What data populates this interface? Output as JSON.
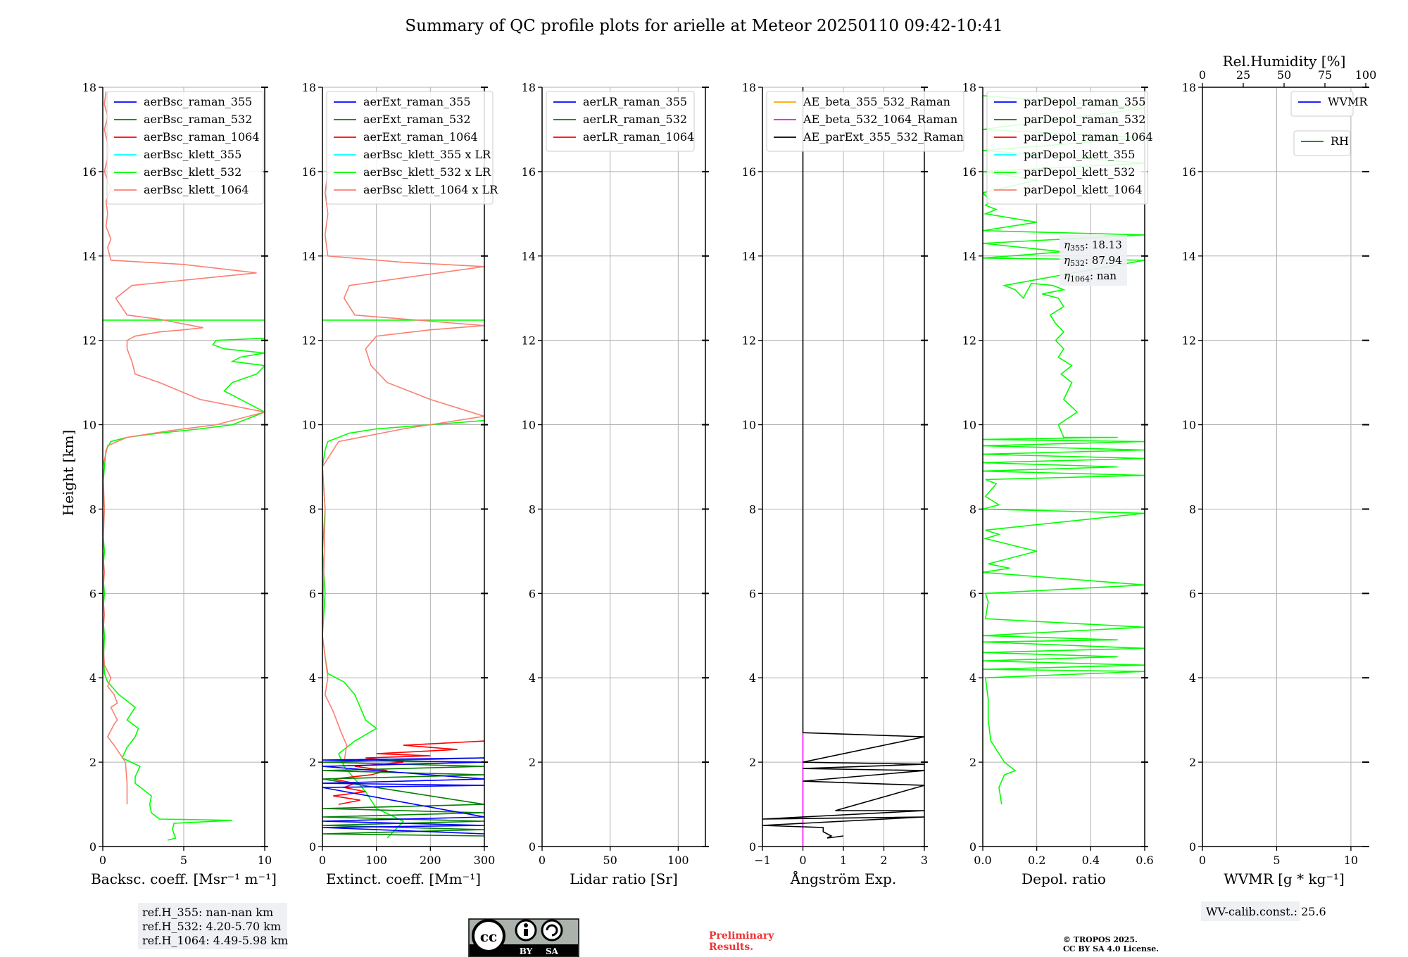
{
  "title": "Summary of QC profile plots for arielle at Meteor 20250110 09:42-10:41",
  "y_axis_label": "Height [km]",
  "colors": {
    "raman_355": "#0000ff",
    "raman_532": "#008000",
    "raman_1064": "#ff0000",
    "klett_355": "#00ffff",
    "klett_532": "#00ff00",
    "klett_1064": "#fa8072",
    "ae_355_532": "#ffa500",
    "ae_532_1064": "#ff00ff",
    "ae_ext": "#000000",
    "wvmr": "#0000ff",
    "rh": "#008000"
  },
  "chart_data": [
    {
      "type": "line",
      "panel": "backscatter",
      "xlabel": "Backsc. coeff. [Msr⁻¹ m⁻¹]",
      "ylabel": "Height [km]",
      "xlim": [
        0,
        10
      ],
      "ylim": [
        0,
        18
      ],
      "xticks": [
        0,
        5,
        10
      ],
      "yticks": [
        0,
        2,
        4,
        6,
        8,
        10,
        12,
        14,
        16,
        18
      ],
      "grid": true,
      "legend_position": "top-left",
      "legend": [
        "aerBsc_raman_355",
        "aerBsc_raman_532",
        "aerBsc_raman_1064",
        "aerBsc_klett_355",
        "aerBsc_klett_532",
        "aerBsc_klett_1064"
      ],
      "series": [
        {
          "name": "aerBsc_klett_532",
          "color_key": "klett_532",
          "x": [
            4.0,
            4.5,
            4.3,
            4.4,
            8.0,
            3.5,
            3.0,
            2.9,
            3.0,
            2.0,
            2.0,
            2.3,
            1.2,
            1.5,
            2.0,
            2.2,
            1.5,
            2.0,
            1.0,
            0.3,
            0.1,
            0.05,
            0.1,
            0.0,
            0.1,
            0.0,
            0.1,
            0.0,
            0.1,
            0.0,
            0.1,
            0.2,
            0.5,
            1.5,
            3.5,
            6.0,
            8.0,
            10.0,
            8.5,
            7.5,
            8.0,
            9.5,
            10.0,
            8.0,
            8.5,
            10.0,
            7.5,
            6.8,
            7.0,
            10.0
          ],
          "y": [
            0.15,
            0.2,
            0.4,
            0.55,
            0.62,
            0.65,
            0.8,
            1.0,
            1.2,
            1.5,
            1.65,
            1.9,
            2.1,
            2.35,
            2.6,
            2.8,
            3.0,
            3.3,
            3.6,
            3.9,
            4.1,
            4.5,
            5.0,
            5.5,
            6.0,
            6.5,
            7.0,
            7.5,
            8.0,
            8.5,
            9.0,
            9.4,
            9.6,
            9.7,
            9.8,
            9.9,
            10.0,
            10.3,
            10.6,
            10.8,
            11.0,
            11.2,
            11.4,
            11.5,
            11.6,
            11.7,
            11.8,
            11.9,
            12.0,
            12.05
          ]
        },
        {
          "name": "aerBsc_klett_532",
          "color_key": "klett_532",
          "x": [
            0.0,
            10.0
          ],
          "y": [
            12.48,
            12.48
          ]
        },
        {
          "name": "aerBsc_klett_1064",
          "color_key": "klett_1064",
          "x": [
            1.5,
            1.5,
            1.4,
            0.7,
            0.3,
            0.7,
            0.9,
            0.5,
            0.9,
            0.7,
            0.3,
            0.5,
            0.1,
            0.0,
            0.1,
            0.0,
            0.1,
            0.0,
            0.1,
            0.0,
            0.3,
            1.5,
            4.0,
            7.0,
            10.0,
            6.0,
            3.5,
            2.0,
            1.8,
            1.5,
            1.5,
            2.0,
            3.5,
            5.0,
            6.2,
            3.5,
            1.5,
            0.8,
            1.8,
            9.5,
            5.0,
            0.5,
            0.3,
            0.5,
            0.2,
            0.3,
            0.2,
            0.5,
            0.1,
            0.4,
            0.1,
            0.3,
            0.1,
            0.2
          ],
          "y": [
            1.0,
            1.5,
            2.0,
            2.4,
            2.6,
            2.9,
            3.0,
            3.3,
            3.4,
            3.6,
            3.8,
            4.0,
            4.3,
            5.0,
            5.5,
            6.0,
            6.5,
            7.0,
            8.0,
            9.0,
            9.5,
            9.7,
            9.85,
            10.0,
            10.3,
            10.6,
            11.0,
            11.2,
            11.5,
            11.8,
            12.0,
            12.1,
            12.2,
            12.25,
            12.3,
            12.5,
            12.6,
            13.0,
            13.3,
            13.6,
            13.8,
            13.9,
            14.2,
            14.4,
            14.7,
            15.0,
            15.3,
            15.6,
            16.0,
            16.5,
            17.0,
            17.3,
            17.6,
            17.9
          ]
        }
      ],
      "footnote_lines": [
        "ref.H_355: nan-nan km",
        "ref.H_532: 4.20-5.70 km",
        "ref.H_1064: 4.49-5.98 km"
      ]
    },
    {
      "type": "line",
      "panel": "extinction",
      "xlabel": "Extinct. coeff. [Mm⁻¹]",
      "xlim": [
        0,
        300
      ],
      "ylim": [
        0,
        18
      ],
      "xticks": [
        0,
        100,
        200,
        300
      ],
      "grid": true,
      "legend_position": "top-left",
      "legend": [
        "aerExt_raman_355",
        "aerExt_raman_532",
        "aerExt_raman_1064",
        "aerBsc_klett_355 x LR",
        "aerBsc_klett_532 x LR",
        "aerBsc_klett_1064 x LR"
      ],
      "series": [
        {
          "name": "aerBsc_klett_532 x LR",
          "color_key": "klett_532",
          "x": [
            120,
            150,
            100,
            80,
            60,
            40,
            30,
            60,
            100,
            80,
            70,
            60,
            40,
            10,
            5,
            0,
            5,
            0,
            5,
            0,
            5,
            10,
            50,
            100,
            200,
            300
          ],
          "y": [
            0.2,
            0.6,
            0.9,
            1.3,
            1.6,
            1.9,
            2.2,
            2.5,
            2.8,
            3.0,
            3.3,
            3.6,
            3.9,
            4.1,
            4.5,
            5.0,
            6.0,
            7.0,
            8.0,
            9.0,
            9.4,
            9.6,
            9.8,
            9.9,
            10.0,
            10.1
          ]
        },
        {
          "name": "aerBsc_klett_532 x LR",
          "color_key": "klett_532",
          "x": [
            0,
            300
          ],
          "y": [
            12.48,
            12.48
          ]
        },
        {
          "name": "aerBsc_klett_1064 x LR",
          "color_key": "klett_1064",
          "x": [
            40,
            45,
            35,
            20,
            5,
            10,
            0,
            5,
            0,
            30,
            150,
            300,
            200,
            120,
            90,
            80,
            100,
            200,
            300,
            60,
            40,
            50,
            300,
            150,
            10,
            5,
            10,
            5,
            10
          ],
          "y": [
            2.0,
            2.4,
            2.7,
            3.2,
            3.6,
            4.0,
            5.0,
            8.0,
            9.0,
            9.6,
            9.9,
            10.2,
            10.6,
            11.0,
            11.4,
            11.8,
            12.1,
            12.25,
            12.35,
            12.6,
            13.0,
            13.3,
            13.75,
            13.85,
            14.0,
            14.5,
            15.0,
            15.5,
            16.0
          ]
        },
        {
          "name": "aerExt_raman_1064",
          "color_key": "raman_1064",
          "x": [
            30,
            70,
            20,
            80,
            40,
            60,
            20,
            90,
            120,
            60,
            150,
            80,
            200,
            100,
            250,
            150,
            300
          ],
          "y": [
            1.0,
            1.1,
            1.2,
            1.3,
            1.4,
            1.5,
            1.6,
            1.7,
            1.8,
            1.9,
            2.0,
            2.1,
            2.15,
            2.2,
            2.3,
            2.4,
            2.5
          ]
        },
        {
          "name": "aerExt_raman_532",
          "color_key": "raman_532",
          "x": [
            300,
            0,
            300,
            0,
            300,
            0,
            300,
            0,
            300,
            0,
            300,
            0,
            300,
            0,
            300
          ],
          "y": [
            0.25,
            0.3,
            0.4,
            0.5,
            0.6,
            0.7,
            0.8,
            0.9,
            1.0,
            1.6,
            1.7,
            1.8,
            1.9,
            2.0,
            2.1
          ]
        },
        {
          "name": "aerExt_raman_355",
          "color_key": "raman_355",
          "x": [
            300,
            0,
            300,
            0,
            300,
            0,
            300,
            0,
            300,
            0,
            300,
            0,
            300
          ],
          "y": [
            0.3,
            0.45,
            0.5,
            0.6,
            0.7,
            1.4,
            1.45,
            1.5,
            1.6,
            1.9,
            2.0,
            2.05,
            2.1
          ]
        }
      ]
    },
    {
      "type": "line",
      "panel": "lidar_ratio",
      "xlabel": "Lidar ratio [Sr]",
      "xlim": [
        0,
        120
      ],
      "ylim": [
        0,
        18
      ],
      "xticks": [
        0,
        50,
        100
      ],
      "grid": true,
      "legend_position": "top-left",
      "legend": [
        "aerLR_raman_355",
        "aerLR_raman_532",
        "aerLR_raman_1064"
      ],
      "series": []
    },
    {
      "type": "line",
      "panel": "angstrom",
      "xlabel": "Ångström Exp.",
      "xlim": [
        -1,
        3
      ],
      "ylim": [
        0,
        18
      ],
      "xticks": [
        -1,
        0,
        1,
        2,
        3
      ],
      "grid": true,
      "legend_position": "top-left",
      "legend": [
        "AE_beta_355_532_Raman",
        "AE_beta_532_1064_Raman",
        "AE_parExt_355_532_Raman"
      ],
      "series": [
        {
          "name": "AE_beta_532_1064_Raman",
          "color_key": "ae_532_1064",
          "x": [
            0,
            0
          ],
          "y": [
            0,
            2.7
          ]
        },
        {
          "name": "AE_parExt_355_532_Raman",
          "color_key": "ae_ext",
          "x": [
            0,
            0,
            3,
            0,
            3,
            0,
            3,
            0,
            3,
            0.8,
            3,
            -1,
            3,
            -1,
            0.5,
            0.5,
            0.6,
            0.7,
            0.6,
            1.0
          ],
          "y": [
            18,
            2.7,
            2.6,
            2.0,
            1.95,
            1.85,
            1.8,
            1.55,
            1.45,
            0.85,
            0.85,
            0.65,
            0.7,
            0.5,
            0.45,
            0.35,
            0.3,
            0.25,
            0.2,
            0.25
          ]
        }
      ]
    },
    {
      "type": "line",
      "panel": "depolarization",
      "xlabel": "Depol. ratio",
      "xlim": [
        0,
        0.6
      ],
      "ylim": [
        0,
        18
      ],
      "xticks": [
        0.0,
        0.2,
        0.4,
        0.6
      ],
      "grid": true,
      "legend_position": "top-left",
      "legend": [
        "parDepol_raman_355",
        "parDepol_raman_532",
        "parDepol_raman_1064",
        "parDepol_klett_355",
        "parDepol_klett_532",
        "parDepol_klett_1064"
      ],
      "annotation_lines": [
        {
          "label": "η355",
          "value": "18.13"
        },
        {
          "label": "η532",
          "value": "87.94"
        },
        {
          "label": "η1064",
          "value": "nan"
        }
      ],
      "series": [
        {
          "name": "parDepol_klett_532",
          "color_key": "klett_532",
          "x": [
            0.07,
            0.06,
            0.08,
            0.12,
            0.08,
            0.03,
            0.02,
            0.02,
            0.01,
            0.6,
            0.0,
            0.6,
            0.0,
            0.5,
            0.0,
            0.6,
            0.0,
            0.5,
            0.0,
            0.6,
            0.01,
            0.02,
            0.01,
            0.6,
            0.0,
            0.1,
            0.02,
            0.2,
            0.01,
            0.06,
            0.01,
            0.6,
            0.0,
            0.06,
            0.01,
            0.05,
            0.01,
            0.6,
            0.0,
            0.5,
            0.0,
            0.6,
            0.0,
            0.6,
            0.0,
            0.6,
            0.0,
            0.5,
            0.3,
            0.28,
            0.35,
            0.3,
            0.33,
            0.29,
            0.33,
            0.28,
            0.3,
            0.27,
            0.3,
            0.27,
            0.25,
            0.3,
            0.28,
            0.22,
            0.3,
            0.26,
            0.18,
            0.15,
            0.12,
            0.08,
            0.25,
            0.6,
            0.0,
            0.3,
            0.0,
            0.6,
            0.0,
            0.2,
            0.01,
            0.05,
            0.01,
            0.03,
            0.0,
            0.2,
            0.0,
            0.6,
            0.0,
            0.6,
            0.0,
            0.6,
            0.0
          ],
          "y": [
            1.0,
            1.4,
            1.7,
            1.8,
            2.0,
            2.5,
            3.0,
            3.5,
            4.0,
            4.15,
            4.2,
            4.3,
            4.4,
            4.5,
            4.6,
            4.7,
            4.85,
            4.9,
            5.0,
            5.2,
            5.4,
            5.8,
            6.0,
            6.2,
            6.5,
            6.6,
            6.7,
            7.0,
            7.3,
            7.4,
            7.5,
            7.9,
            8.0,
            8.1,
            8.3,
            8.6,
            8.7,
            8.8,
            8.9,
            9.0,
            9.1,
            9.2,
            9.3,
            9.4,
            9.5,
            9.6,
            9.65,
            9.7,
            9.7,
            10.0,
            10.3,
            10.6,
            11.0,
            11.2,
            11.4,
            11.6,
            11.8,
            12.0,
            12.2,
            12.4,
            12.6,
            12.8,
            13.0,
            13.1,
            13.2,
            13.3,
            13.35,
            13.0,
            13.2,
            13.3,
            13.5,
            13.9,
            13.95,
            14.1,
            14.3,
            14.5,
            14.6,
            14.8,
            15.0,
            15.1,
            15.2,
            15.3,
            15.5,
            15.8,
            16.0,
            16.2,
            16.5,
            16.8,
            17.0,
            17.5,
            17.8
          ]
        }
      ]
    },
    {
      "type": "line",
      "panel": "water_vapor",
      "xlabel": "WVMR [g * kg⁻¹]",
      "xlim": [
        0,
        11
      ],
      "ylim": [
        0,
        18
      ],
      "xticks": [
        0,
        5,
        10
      ],
      "top_axis_label": "Rel.Humidity [%]",
      "top_xlim": [
        0,
        100
      ],
      "top_xticks": [
        0,
        25,
        50,
        75,
        100
      ],
      "grid": true,
      "legend_position": "top-right",
      "legend": [
        "WVMR"
      ],
      "legend2": [
        "RH"
      ],
      "series": [],
      "footnote": "WV-calib.const.: 25.6"
    }
  ],
  "footer": {
    "license_badge": {
      "cc": "cc",
      "by": "BY",
      "sa": "SA"
    },
    "preliminary": [
      "Preliminary",
      "Results."
    ],
    "copyright": [
      "© TROPOS 2025.",
      "CC BY SA 4.0 License."
    ]
  }
}
